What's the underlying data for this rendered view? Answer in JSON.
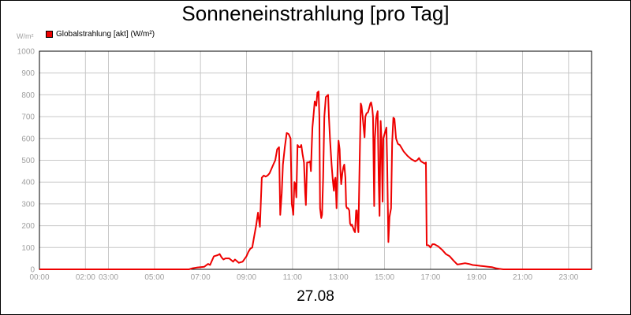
{
  "chart_data": {
    "type": "line",
    "title": "Sonneneinstrahlung [pro Tag]",
    "ylabel": "W/m²",
    "xlabel": "27.08",
    "ylim": [
      0,
      1000
    ],
    "xlim": [
      "00:00",
      "24:00"
    ],
    "yticks": [
      "0",
      "100",
      "200",
      "300",
      "400",
      "500",
      "600",
      "700",
      "800",
      "900",
      "1000"
    ],
    "xticks": [
      {
        "t": "00:00",
        "label": "00:00"
      },
      {
        "t": "02:00",
        "label": "02:00"
      },
      {
        "t": "03:00",
        "label": "03:00"
      },
      {
        "t": "05:00",
        "label": "05:00"
      },
      {
        "t": "07:00",
        "label": "07:00"
      },
      {
        "t": "09:00",
        "label": "09:00"
      },
      {
        "t": "11:00",
        "label": "11:00"
      },
      {
        "t": "13:00",
        "label": "13:00"
      },
      {
        "t": "15:00",
        "label": "15:00"
      },
      {
        "t": "17:00",
        "label": "17:00"
      },
      {
        "t": "19:00",
        "label": "19:00"
      },
      {
        "t": "21:00",
        "label": "21:00"
      },
      {
        "t": "23:00",
        "label": "23:00"
      }
    ],
    "grid": true,
    "legend": "top-left",
    "series": [
      {
        "name": "Globalstrahlung [akt] (W/m²)",
        "color": "#ee0000",
        "points": [
          [
            "00:00",
            0
          ],
          [
            "06:30",
            0
          ],
          [
            "06:40",
            5
          ],
          [
            "06:50",
            8
          ],
          [
            "07:00",
            10
          ],
          [
            "07:10",
            12
          ],
          [
            "07:20",
            25
          ],
          [
            "07:25",
            20
          ],
          [
            "07:35",
            60
          ],
          [
            "07:45",
            65
          ],
          [
            "07:50",
            70
          ],
          [
            "07:55",
            55
          ],
          [
            "08:00",
            45
          ],
          [
            "08:05",
            50
          ],
          [
            "08:15",
            50
          ],
          [
            "08:25",
            35
          ],
          [
            "08:30",
            45
          ],
          [
            "08:40",
            30
          ],
          [
            "08:50",
            35
          ],
          [
            "09:00",
            60
          ],
          [
            "09:05",
            80
          ],
          [
            "09:10",
            95
          ],
          [
            "09:15",
            100
          ],
          [
            "09:20",
            150
          ],
          [
            "09:25",
            200
          ],
          [
            "09:30",
            260
          ],
          [
            "09:35",
            195
          ],
          [
            "09:40",
            420
          ],
          [
            "09:45",
            430
          ],
          [
            "09:50",
            425
          ],
          [
            "09:55",
            430
          ],
          [
            "10:00",
            440
          ],
          [
            "10:10",
            480
          ],
          [
            "10:15",
            500
          ],
          [
            "10:20",
            550
          ],
          [
            "10:25",
            560
          ],
          [
            "10:28",
            250
          ],
          [
            "10:32",
            350
          ],
          [
            "10:35",
            480
          ],
          [
            "10:40",
            560
          ],
          [
            "10:45",
            625
          ],
          [
            "10:50",
            620
          ],
          [
            "10:55",
            600
          ],
          [
            "10:58",
            300
          ],
          [
            "11:00",
            280
          ],
          [
            "11:02",
            250
          ],
          [
            "11:05",
            400
          ],
          [
            "11:08",
            390
          ],
          [
            "11:10",
            330
          ],
          [
            "11:13",
            570
          ],
          [
            "11:17",
            560
          ],
          [
            "11:20",
            560
          ],
          [
            "11:23",
            570
          ],
          [
            "11:26",
            530
          ],
          [
            "11:30",
            490
          ],
          [
            "11:33",
            350
          ],
          [
            "11:35",
            295
          ],
          [
            "11:38",
            490
          ],
          [
            "11:42",
            490
          ],
          [
            "11:46",
            495
          ],
          [
            "11:48",
            450
          ],
          [
            "11:50",
            550
          ],
          [
            "11:52",
            650
          ],
          [
            "11:55",
            710
          ],
          [
            "11:58",
            770
          ],
          [
            "12:00",
            760
          ],
          [
            "12:02",
            750
          ],
          [
            "12:05",
            810
          ],
          [
            "12:08",
            815
          ],
          [
            "12:10",
            700
          ],
          [
            "12:12",
            280
          ],
          [
            "12:15",
            235
          ],
          [
            "12:17",
            250
          ],
          [
            "12:20",
            420
          ],
          [
            "12:23",
            700
          ],
          [
            "12:27",
            790
          ],
          [
            "12:30",
            795
          ],
          [
            "12:33",
            800
          ],
          [
            "12:35",
            700
          ],
          [
            "12:38",
            590
          ],
          [
            "12:42",
            480
          ],
          [
            "12:45",
            410
          ],
          [
            "12:48",
            360
          ],
          [
            "12:50",
            410
          ],
          [
            "12:52",
            420
          ],
          [
            "12:55",
            280
          ],
          [
            "12:58",
            500
          ],
          [
            "13:00",
            590
          ],
          [
            "13:03",
            550
          ],
          [
            "13:05",
            450
          ],
          [
            "13:07",
            390
          ],
          [
            "13:10",
            440
          ],
          [
            "13:13",
            470
          ],
          [
            "13:15",
            480
          ],
          [
            "13:18",
            420
          ],
          [
            "13:20",
            290
          ],
          [
            "13:22",
            280
          ],
          [
            "13:25",
            280
          ],
          [
            "13:28",
            270
          ],
          [
            "13:30",
            210
          ],
          [
            "13:33",
            200
          ],
          [
            "13:35",
            205
          ],
          [
            "13:40",
            180
          ],
          [
            "13:43",
            170
          ],
          [
            "13:46",
            270
          ],
          [
            "13:48",
            270
          ],
          [
            "13:50",
            200
          ],
          [
            "13:52",
            170
          ],
          [
            "13:55",
            480
          ],
          [
            "13:58",
            760
          ],
          [
            "14:00",
            750
          ],
          [
            "14:03",
            700
          ],
          [
            "14:05",
            660
          ],
          [
            "14:08",
            605
          ],
          [
            "14:10",
            700
          ],
          [
            "14:13",
            715
          ],
          [
            "14:17",
            720
          ],
          [
            "14:20",
            740
          ],
          [
            "14:23",
            760
          ],
          [
            "14:25",
            765
          ],
          [
            "14:28",
            740
          ],
          [
            "14:30",
            700
          ],
          [
            "14:33",
            290
          ],
          [
            "14:35",
            600
          ],
          [
            "14:38",
            690
          ],
          [
            "14:40",
            710
          ],
          [
            "14:42",
            725
          ],
          [
            "14:45",
            400
          ],
          [
            "14:47",
            245
          ],
          [
            "14:50",
            680
          ],
          [
            "14:52",
            600
          ],
          [
            "14:55",
            310
          ],
          [
            "14:57",
            600
          ],
          [
            "15:00",
            620
          ],
          [
            "15:05",
            650
          ],
          [
            "15:07",
            480
          ],
          [
            "15:10",
            125
          ],
          [
            "15:13",
            240
          ],
          [
            "15:17",
            280
          ],
          [
            "15:20",
            580
          ],
          [
            "15:23",
            695
          ],
          [
            "15:26",
            690
          ],
          [
            "15:30",
            600
          ],
          [
            "15:35",
            575
          ],
          [
            "15:40",
            570
          ],
          [
            "15:45",
            555
          ],
          [
            "15:50",
            540
          ],
          [
            "16:00",
            520
          ],
          [
            "16:10",
            505
          ],
          [
            "16:20",
            495
          ],
          [
            "16:25",
            500
          ],
          [
            "16:30",
            510
          ],
          [
            "16:35",
            495
          ],
          [
            "16:40",
            490
          ],
          [
            "16:45",
            485
          ],
          [
            "16:48",
            490
          ],
          [
            "16:50",
            110
          ],
          [
            "16:55",
            110
          ],
          [
            "17:00",
            100
          ],
          [
            "17:05",
            115
          ],
          [
            "17:10",
            115
          ],
          [
            "17:20",
            105
          ],
          [
            "17:30",
            90
          ],
          [
            "17:40",
            70
          ],
          [
            "17:50",
            60
          ],
          [
            "18:00",
            40
          ],
          [
            "18:10",
            22
          ],
          [
            "18:20",
            25
          ],
          [
            "18:30",
            28
          ],
          [
            "18:40",
            25
          ],
          [
            "18:50",
            20
          ],
          [
            "19:00",
            18
          ],
          [
            "19:10",
            16
          ],
          [
            "19:20",
            14
          ],
          [
            "19:30",
            12
          ],
          [
            "19:40",
            10
          ],
          [
            "19:50",
            5
          ],
          [
            "20:00",
            2
          ],
          [
            "20:10",
            0
          ],
          [
            "24:00",
            0
          ]
        ]
      }
    ]
  }
}
